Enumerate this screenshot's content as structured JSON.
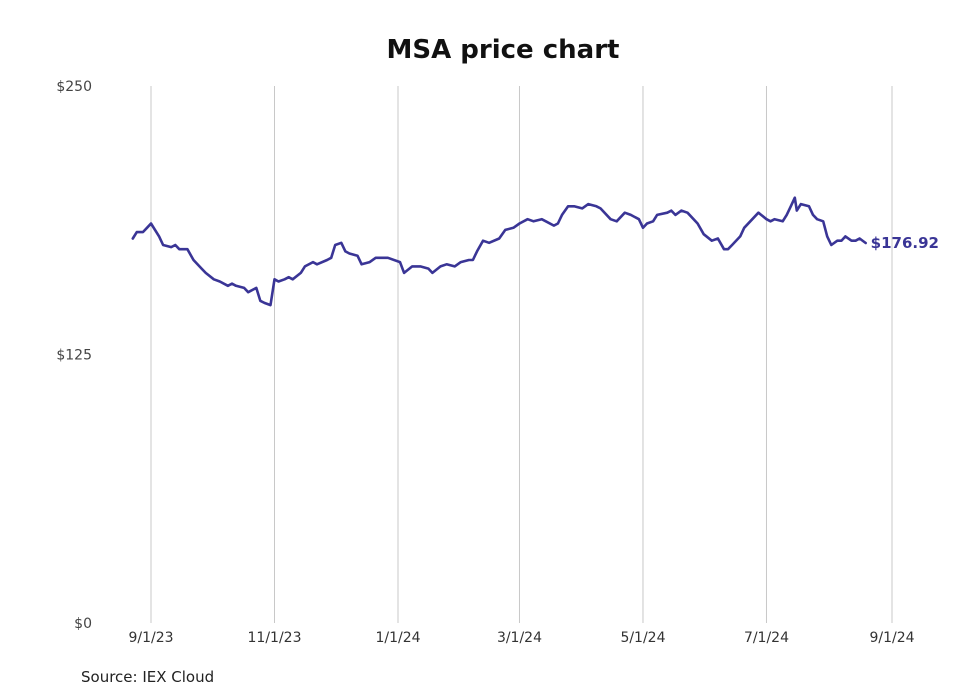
{
  "chart_data": {
    "type": "line",
    "title": "MSA price chart",
    "xlabel": "",
    "ylabel": "",
    "ylim": [
      0,
      250
    ],
    "y_ticks": [
      0,
      125,
      250
    ],
    "y_tick_labels": [
      "$0",
      "$125",
      "$250"
    ],
    "x_ticks": [
      "2023-09-01",
      "2023-11-01",
      "2024-01-01",
      "2024-03-01",
      "2024-05-01",
      "2024-07-01",
      "2024-09-01"
    ],
    "x_tick_labels": [
      "9/1/23",
      "11/1/23",
      "1/1/24",
      "3/1/24",
      "5/1/24",
      "7/1/24",
      "9/1/24"
    ],
    "grid": "vertical",
    "colors": {
      "line": "#3a3596",
      "grid": "#c8c8c8"
    },
    "last_value_label": "$176.92",
    "series": [
      {
        "points": [
          [
            "2023-08-23",
            179
          ],
          [
            "2023-08-25",
            182
          ],
          [
            "2023-08-28",
            182
          ],
          [
            "2023-08-30",
            184
          ],
          [
            "2023-09-01",
            186
          ],
          [
            "2023-09-05",
            180
          ],
          [
            "2023-09-07",
            176
          ],
          [
            "2023-09-11",
            175
          ],
          [
            "2023-09-13",
            176
          ],
          [
            "2023-09-15",
            174
          ],
          [
            "2023-09-19",
            174
          ],
          [
            "2023-09-22",
            169
          ],
          [
            "2023-09-26",
            165
          ],
          [
            "2023-09-28",
            163
          ],
          [
            "2023-10-02",
            160
          ],
          [
            "2023-10-05",
            159
          ],
          [
            "2023-10-09",
            157
          ],
          [
            "2023-10-11",
            158
          ],
          [
            "2023-10-13",
            157
          ],
          [
            "2023-10-17",
            156
          ],
          [
            "2023-10-19",
            154
          ],
          [
            "2023-10-23",
            156
          ],
          [
            "2023-10-25",
            150
          ],
          [
            "2023-10-27",
            149
          ],
          [
            "2023-10-30",
            148
          ],
          [
            "2023-11-01",
            160
          ],
          [
            "2023-11-03",
            159
          ],
          [
            "2023-11-06",
            160
          ],
          [
            "2023-11-08",
            161
          ],
          [
            "2023-11-10",
            160
          ],
          [
            "2023-11-14",
            163
          ],
          [
            "2023-11-16",
            166
          ],
          [
            "2023-11-20",
            168
          ],
          [
            "2023-11-22",
            167
          ],
          [
            "2023-11-27",
            169
          ],
          [
            "2023-11-29",
            170
          ],
          [
            "2023-12-01",
            176
          ],
          [
            "2023-12-04",
            177
          ],
          [
            "2023-12-06",
            173
          ],
          [
            "2023-12-08",
            172
          ],
          [
            "2023-12-12",
            171
          ],
          [
            "2023-12-14",
            167
          ],
          [
            "2023-12-18",
            168
          ],
          [
            "2023-12-21",
            170
          ],
          [
            "2023-12-27",
            170
          ],
          [
            "2024-01-02",
            168
          ],
          [
            "2024-01-04",
            163
          ],
          [
            "2024-01-08",
            166
          ],
          [
            "2024-01-12",
            166
          ],
          [
            "2024-01-16",
            165
          ],
          [
            "2024-01-18",
            163
          ],
          [
            "2024-01-22",
            166
          ],
          [
            "2024-01-25",
            167
          ],
          [
            "2024-01-29",
            166
          ],
          [
            "2024-02-01",
            168
          ],
          [
            "2024-02-05",
            169
          ],
          [
            "2024-02-07",
            169
          ],
          [
            "2024-02-09",
            173
          ],
          [
            "2024-02-12",
            178
          ],
          [
            "2024-02-15",
            177
          ],
          [
            "2024-02-20",
            179
          ],
          [
            "2024-02-23",
            183
          ],
          [
            "2024-02-27",
            184
          ],
          [
            "2024-03-01",
            186
          ],
          [
            "2024-03-05",
            188
          ],
          [
            "2024-03-08",
            187
          ],
          [
            "2024-03-12",
            188
          ],
          [
            "2024-03-14",
            187
          ],
          [
            "2024-03-18",
            185
          ],
          [
            "2024-03-20",
            186
          ],
          [
            "2024-03-22",
            190
          ],
          [
            "2024-03-25",
            194
          ],
          [
            "2024-03-28",
            194
          ],
          [
            "2024-04-01",
            193
          ],
          [
            "2024-04-04",
            195
          ],
          [
            "2024-04-08",
            194
          ],
          [
            "2024-04-10",
            193
          ],
          [
            "2024-04-15",
            188
          ],
          [
            "2024-04-18",
            187
          ],
          [
            "2024-04-22",
            191
          ],
          [
            "2024-04-25",
            190
          ],
          [
            "2024-04-29",
            188
          ],
          [
            "2024-05-01",
            184
          ],
          [
            "2024-05-03",
            186
          ],
          [
            "2024-05-06",
            187
          ],
          [
            "2024-05-08",
            190
          ],
          [
            "2024-05-13",
            191
          ],
          [
            "2024-05-15",
            192
          ],
          [
            "2024-05-17",
            190
          ],
          [
            "2024-05-20",
            192
          ],
          [
            "2024-05-23",
            191
          ],
          [
            "2024-05-28",
            186
          ],
          [
            "2024-05-31",
            181
          ],
          [
            "2024-06-04",
            178
          ],
          [
            "2024-06-07",
            179
          ],
          [
            "2024-06-10",
            174
          ],
          [
            "2024-06-12",
            174
          ],
          [
            "2024-06-14",
            176
          ],
          [
            "2024-06-18",
            180
          ],
          [
            "2024-06-20",
            184
          ],
          [
            "2024-06-24",
            188
          ],
          [
            "2024-06-27",
            191
          ],
          [
            "2024-07-01",
            188
          ],
          [
            "2024-07-03",
            187
          ],
          [
            "2024-07-05",
            188
          ],
          [
            "2024-07-09",
            187
          ],
          [
            "2024-07-11",
            190
          ],
          [
            "2024-07-13",
            194
          ],
          [
            "2024-07-15",
            198
          ],
          [
            "2024-07-16",
            192
          ],
          [
            "2024-07-18",
            195
          ],
          [
            "2024-07-22",
            194
          ],
          [
            "2024-07-24",
            190
          ],
          [
            "2024-07-26",
            188
          ],
          [
            "2024-07-29",
            187
          ],
          [
            "2024-07-31",
            180
          ],
          [
            "2024-08-02",
            176
          ],
          [
            "2024-08-05",
            178
          ],
          [
            "2024-08-07",
            178
          ],
          [
            "2024-08-09",
            180
          ],
          [
            "2024-08-12",
            178
          ],
          [
            "2024-08-14",
            178
          ],
          [
            "2024-08-16",
            179
          ],
          [
            "2024-08-19",
            176.92
          ]
        ]
      }
    ]
  },
  "footer": {
    "source": "Source: IEX Cloud"
  }
}
